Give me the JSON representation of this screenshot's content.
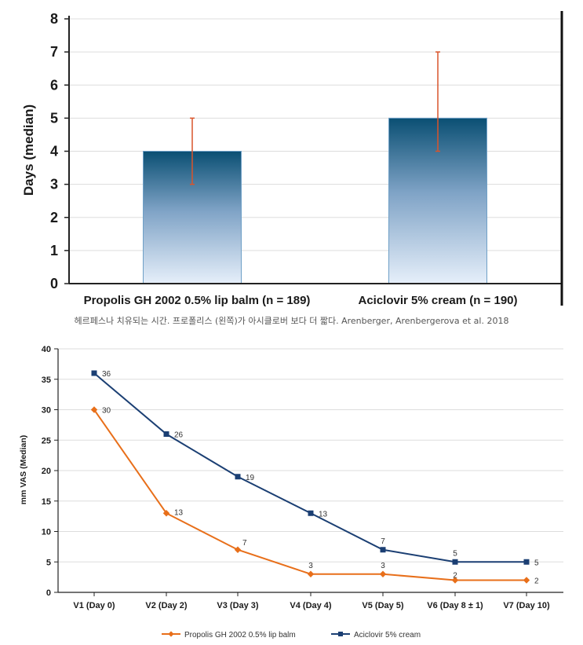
{
  "caption": "헤르페스나 치유되는 시간. 프로폴리스 (왼쪽)가 아시클로버 보다 더 짧다. Arenberger, Arenbergerova et al. 2018",
  "chart_data": [
    {
      "type": "bar",
      "title": "",
      "ylabel": "Days (median)",
      "xlabel": "",
      "ylim": [
        0,
        8
      ],
      "yticks": [
        "0",
        "1",
        "2",
        "3",
        "4",
        "5",
        "6",
        "7",
        "8"
      ],
      "categories": [
        "Propolis GH 2002 0.5% lip balm (n = 189)",
        "Aciclovir 5% cream (n = 190)"
      ],
      "values": [
        4,
        5
      ],
      "error_low": [
        3,
        4
      ],
      "error_high": [
        5,
        7
      ],
      "grid": true,
      "colors": {
        "bar_top": "#0a4f73",
        "bar_bottom": "#e6effa",
        "error": "#d9542b",
        "grid": "#dddddd"
      }
    },
    {
      "type": "line",
      "title": "",
      "ylabel": "mm VAS (Median)",
      "xlabel": "",
      "ylim": [
        0,
        40
      ],
      "yticks": [
        "0",
        "5",
        "10",
        "15",
        "20",
        "25",
        "30",
        "35",
        "40"
      ],
      "categories": [
        "V1 (Day 0)",
        "V2 (Day 2)",
        "V3 (Day 3)",
        "V4 (Day 4)",
        "V5 (Day 5)",
        "V6 (Day 8 ± 1)",
        "V7 (Day 10)"
      ],
      "series": [
        {
          "name": "Propolis GH 2002 0.5% lip balm",
          "values": [
            30,
            13,
            7,
            3,
            3,
            2,
            2
          ],
          "color": "#e86f1a",
          "marker": "diamond"
        },
        {
          "name": "Aciclovir 5% cream",
          "values": [
            36,
            26,
            19,
            13,
            7,
            5,
            5
          ],
          "color": "#1b3f73",
          "marker": "square"
        }
      ],
      "grid": true,
      "legend": "bottom",
      "colors": {
        "grid": "#dddddd"
      }
    }
  ]
}
